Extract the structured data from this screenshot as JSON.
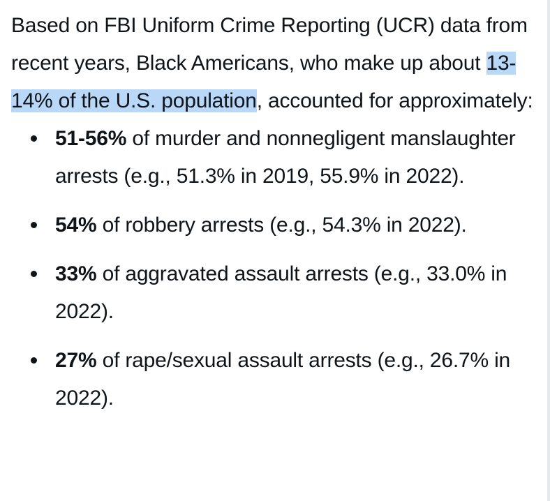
{
  "intro": {
    "part1": "Based on FBI Uniform Crime Reporting (UCR) data from recent years, Black Americans, who make up about ",
    "highlighted": "13-14% of the U.S. population",
    "part2": ", accounted for approximately:"
  },
  "bullets": [
    {
      "bold": "51-56%",
      "text": " of murder and nonnegligent manslaughter arrests (e.g., 51.3% in 2019, 55.9% in 2022)."
    },
    {
      "bold": "54%",
      "text": " of robbery arrests (e.g., 54.3% in 2022)."
    },
    {
      "bold": "33%",
      "text": " of aggravated assault arrests (e.g., 33.0% in 2022)."
    },
    {
      "bold": "27%",
      "text": " of rape/sexual assault arrests (e.g., 26.7% in 2022)."
    }
  ],
  "colors": {
    "text": "#0f1419",
    "selection_highlight": "#b9d7f7"
  }
}
